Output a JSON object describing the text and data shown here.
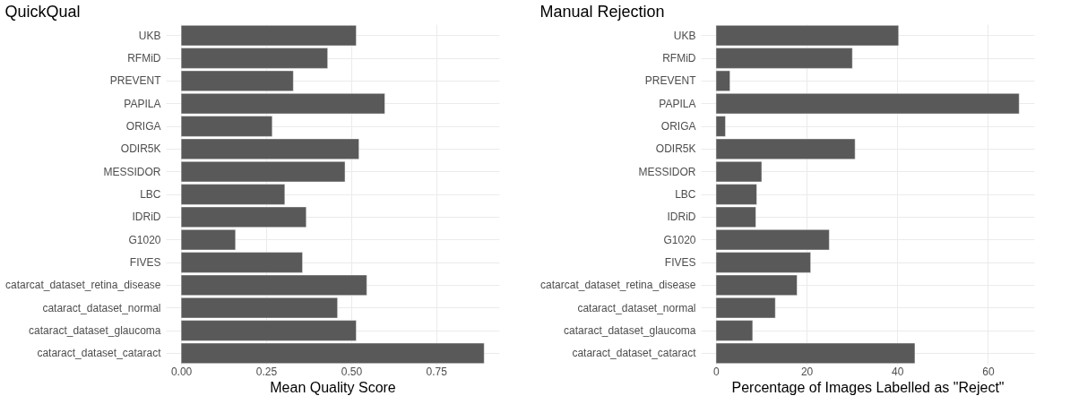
{
  "chart_data": [
    {
      "type": "bar",
      "orientation": "horizontal",
      "title": "QuickQual",
      "xlabel": "Mean Quality Score",
      "categories": [
        "UKB",
        "RFMiD",
        "PREVENT",
        "PAPILA",
        "ORIGA",
        "ODIR5K",
        "MESSIDOR",
        "LBC",
        "IDRiD",
        "G1020",
        "FIVES",
        "catarcat_dataset_retina_disease",
        "cataract_dataset_normal",
        "cataract_dataset_glaucoma",
        "cataract_dataset_cataract"
      ],
      "values": [
        0.515,
        0.431,
        0.33,
        0.599,
        0.268,
        0.523,
        0.482,
        0.305,
        0.368,
        0.16,
        0.357,
        0.546,
        0.46,
        0.515,
        0.891
      ],
      "color": "#595959",
      "xlim": [
        -0.045,
        0.935
      ],
      "xticks": [
        {
          "value": 0,
          "label": "0.00"
        },
        0.25,
        {
          "value": 0.5,
          "label": "0.50"
        },
        0.75
      ],
      "grid": true
    },
    {
      "type": "bar",
      "orientation": "horizontal",
      "title": "Manual Rejection",
      "xlabel": "Percentage of Images Labelled as \"Reject\"",
      "categories": [
        "UKB",
        "RFMiD",
        "PREVENT",
        "PAPILA",
        "ORIGA",
        "ODIR5K",
        "MESSIDOR",
        "LBC",
        "IDRiD",
        "G1020",
        "FIVES",
        "catarcat_dataset_retina_disease",
        "cataract_dataset_normal",
        "cataract_dataset_glaucoma",
        "cataract_dataset_cataract"
      ],
      "values": [
        40.3,
        30.1,
        3.1,
        66.9,
        2.1,
        30.7,
        10.1,
        9.0,
        8.8,
        25.0,
        20.9,
        17.9,
        13.1,
        8.1,
        43.9
      ],
      "color": "#595959",
      "xlim": [
        -3.35,
        70.2
      ],
      "xticks": [
        0,
        20,
        40,
        60
      ],
      "grid": true
    }
  ]
}
